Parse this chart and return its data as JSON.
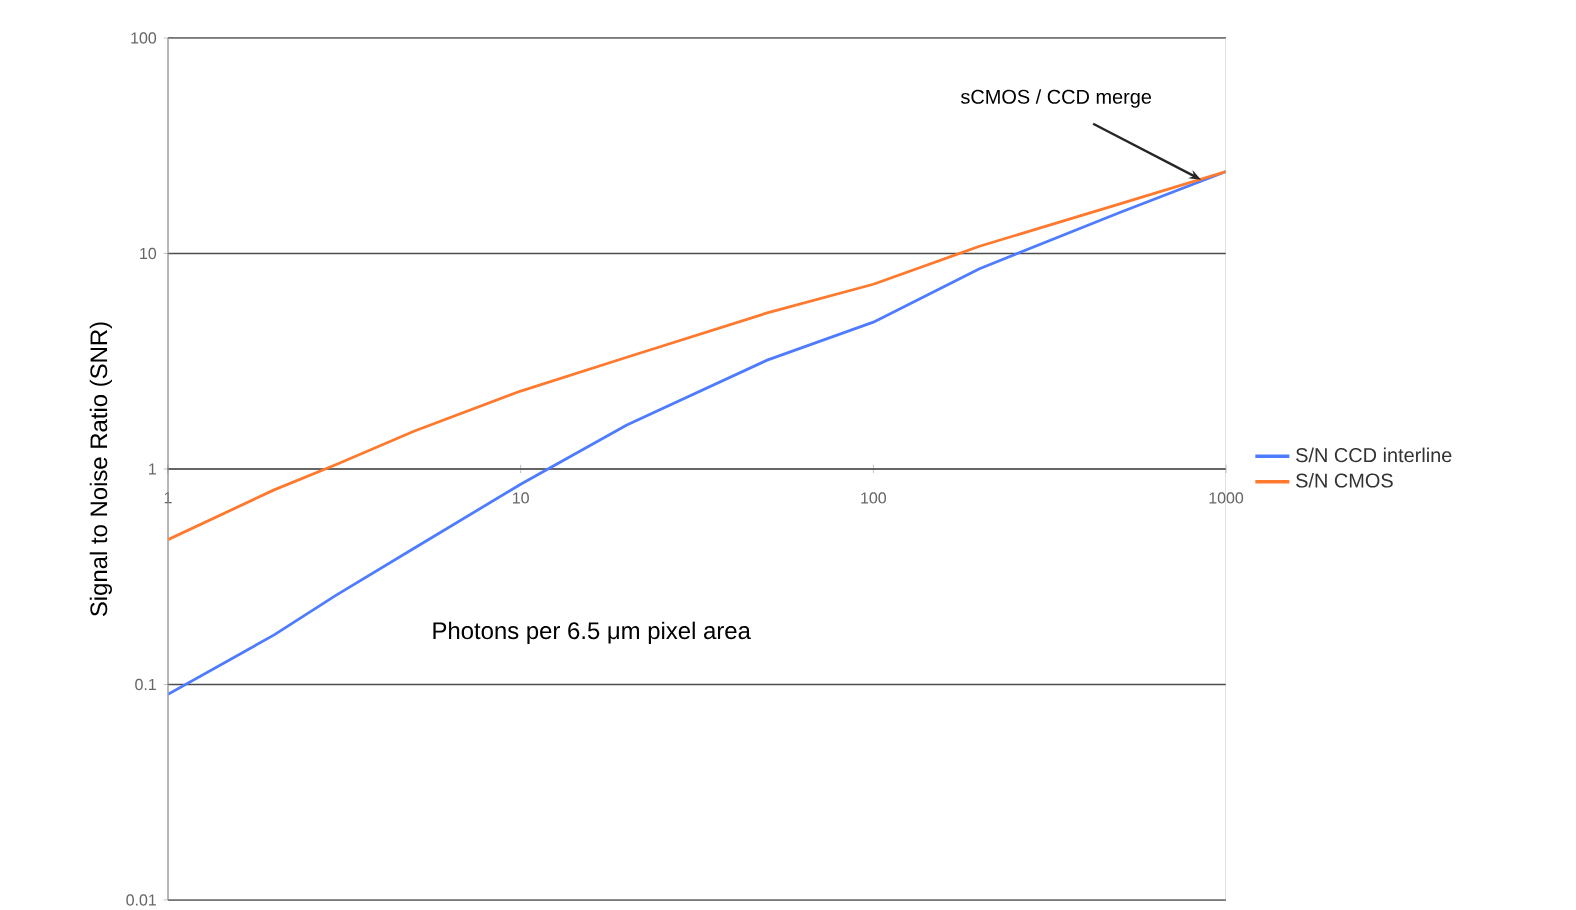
{
  "chart_data": {
    "type": "line",
    "xlabel": "Photons per 6.5 μm pixel area",
    "ylabel": "Signal to Noise Ratio (SNR)",
    "x": [
      1,
      2,
      3,
      5,
      10,
      20,
      50,
      100,
      200,
      500,
      1000
    ],
    "series": [
      {
        "name": "S/N CCD interline",
        "color": "#4f7cff",
        "values": [
          0.09,
          0.17,
          0.26,
          0.43,
          0.85,
          1.6,
          3.2,
          4.8,
          8.5,
          15.5,
          24
        ]
      },
      {
        "name": "S/N CMOS",
        "color": "#ff7a2f",
        "values": [
          0.47,
          0.8,
          1.05,
          1.5,
          2.3,
          3.3,
          5.3,
          7.2,
          10.8,
          17,
          24
        ]
      }
    ],
    "log": "xy",
    "xlim": [
      1,
      1000
    ],
    "ylim": [
      0.01,
      100
    ],
    "xticks": [
      1,
      10,
      100,
      1000
    ],
    "yticks": [
      0.01,
      0.1,
      1,
      10,
      100
    ],
    "grid": "y",
    "legend": "right",
    "marker": "none",
    "line_style": "solid",
    "annotations": [
      {
        "text": "sCMOS / CCD merge",
        "x": 850,
        "y": 22
      }
    ]
  }
}
